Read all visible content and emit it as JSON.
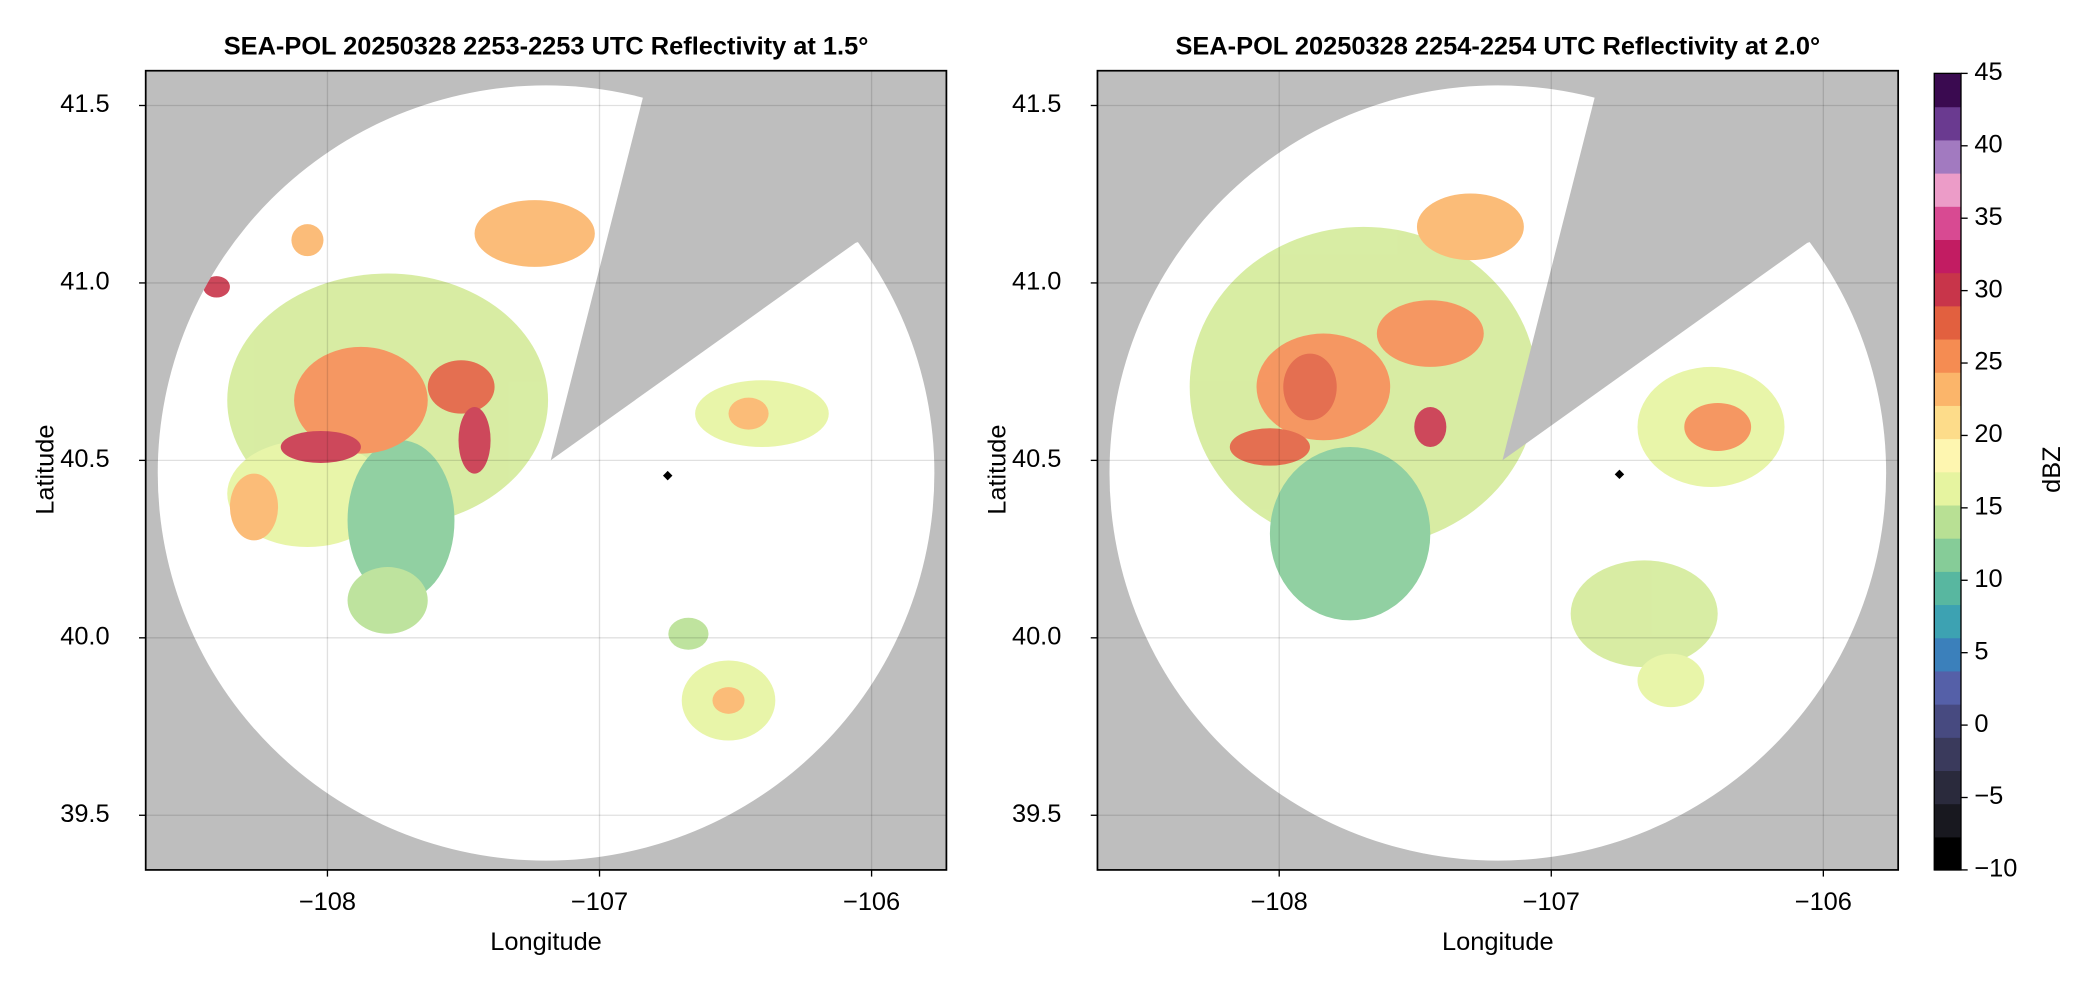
{
  "chart_data": [
    {
      "type": "map",
      "title": "SEA-POL 20250328 2253-2253 UTC Reflectivity at 1.5°",
      "xlabel": "Longitude",
      "ylabel": "Latitude",
      "xlim": [
        -108.668,
        -105.725
      ],
      "ylim": [
        39.346,
        41.598
      ],
      "xticks": [
        {
          "value": -108,
          "label": "−108"
        },
        {
          "value": -107,
          "label": "−107"
        },
        {
          "value": -106,
          "label": "−106"
        }
      ],
      "yticks": [
        39.5,
        {
          "value": 40,
          "label": "40.0"
        },
        40.5,
        {
          "value": 41,
          "label": "41.0"
        },
        41.5
      ],
      "grid": true,
      "background_color": "#bebebe",
      "coverage_color": "#ffffff"
    },
    {
      "type": "map",
      "title": "SEA-POL 20250328 2254-2254 UTC Reflectivity at 2.0°",
      "xlabel": "Longitude",
      "ylabel": "Latitude",
      "xlim": [
        -108.668,
        -105.725
      ],
      "ylim": [
        39.346,
        41.598
      ],
      "xticks": [
        {
          "value": -108,
          "label": "−108"
        },
        {
          "value": -107,
          "label": "−107"
        },
        {
          "value": -106,
          "label": "−106"
        }
      ],
      "yticks": [
        39.5,
        {
          "value": 40,
          "label": "40.0"
        },
        40.5,
        {
          "value": 41,
          "label": "41.0"
        },
        41.5
      ],
      "grid": true,
      "background_color": "#bebebe",
      "coverage_color": "#ffffff",
      "colorbar": {
        "label": "dBZ",
        "lim": [
          -10,
          45
        ],
        "ticks": [
          {
            "value": -10,
            "label": "−10"
          },
          {
            "value": -5,
            "label": "−5"
          },
          0,
          5,
          10,
          15,
          20,
          25,
          30,
          35,
          40,
          45
        ],
        "colors": [
          "#000000",
          "#18181f",
          "#2a2a3c",
          "#3a3a5c",
          "#474a80",
          "#5560a8",
          "#3b80bb",
          "#3da2b2",
          "#58b7a0",
          "#86cc98",
          "#b8e094",
          "#e6f4a0",
          "#fef6b0",
          "#fddc8a",
          "#fbb56a",
          "#f58c52",
          "#e2603f",
          "#c8354a",
          "#c21c62",
          "#d84a92",
          "#ec9cc8",
          "#a27ac0",
          "#6a3a90",
          "#3a0a50"
        ]
      }
    }
  ]
}
